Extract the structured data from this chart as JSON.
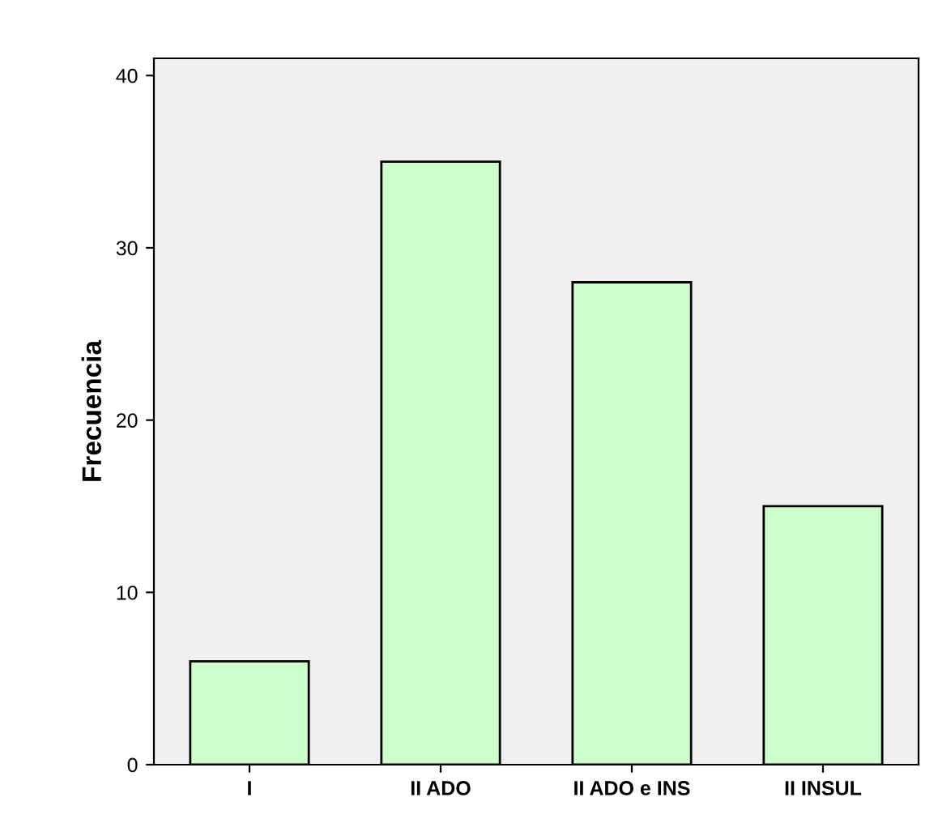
{
  "chart_data": {
    "type": "bar",
    "ylabel": "Frecuencia",
    "categories": [
      "I",
      "II ADO",
      "II ADO e INS",
      "II INSUL"
    ],
    "values": [
      6,
      35,
      28,
      15
    ],
    "color": "#ccffcc",
    "ylim": [
      0,
      41
    ],
    "yticks": [
      0,
      10,
      20,
      30,
      40
    ],
    "grid": false
  }
}
